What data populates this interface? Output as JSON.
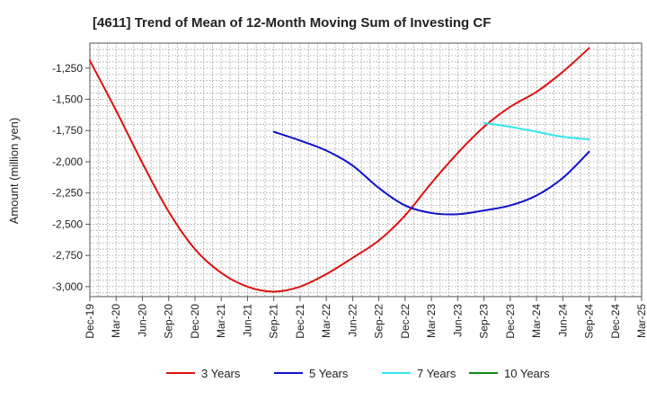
{
  "chart_data": {
    "type": "line",
    "title": "[4611]  Trend of Mean of 12-Month Moving Sum of Investing CF",
    "ylabel": "Amount (million yen)",
    "xlabel": "",
    "x_ticks": [
      "Dec-19",
      "Mar-20",
      "Jun-20",
      "Sep-20",
      "Dec-20",
      "Mar-21",
      "Jun-21",
      "Sep-21",
      "Dec-21",
      "Mar-22",
      "Jun-22",
      "Sep-22",
      "Dec-22",
      "Mar-23",
      "Jun-23",
      "Sep-23",
      "Dec-23",
      "Mar-24",
      "Jun-24",
      "Sep-24",
      "Dec-24",
      "Mar-25"
    ],
    "y_ticks": [
      -3000,
      -2750,
      -2500,
      -2250,
      -2000,
      -1750,
      -1500,
      -1250
    ],
    "y_tick_labels": [
      "-3,000",
      "-2,750",
      "-2,500",
      "-2,250",
      "-2,000",
      "-1,750",
      "-1,500",
      "-1,250"
    ],
    "ylim": [
      -3080,
      -1050
    ],
    "xlim": [
      "Dec-19",
      "Mar-25"
    ],
    "grid": true,
    "legend_position": "bottom",
    "series": [
      {
        "name": "3 Years",
        "color": "#dd1111",
        "points": [
          [
            "Dec-19",
            -1190
          ],
          [
            "Mar-20",
            -1590
          ],
          [
            "Jun-20",
            -2010
          ],
          [
            "Sep-20",
            -2400
          ],
          [
            "Dec-20",
            -2700
          ],
          [
            "Mar-21",
            -2890
          ],
          [
            "Jun-21",
            -3000
          ],
          [
            "Sep-21",
            -3040
          ],
          [
            "Dec-21",
            -3000
          ],
          [
            "Mar-22",
            -2900
          ],
          [
            "Jun-22",
            -2770
          ],
          [
            "Sep-22",
            -2630
          ],
          [
            "Dec-22",
            -2430
          ],
          [
            "Mar-23",
            -2170
          ],
          [
            "Jun-23",
            -1930
          ],
          [
            "Sep-23",
            -1720
          ],
          [
            "Dec-23",
            -1560
          ],
          [
            "Mar-24",
            -1440
          ],
          [
            "Jun-24",
            -1280
          ],
          [
            "Sep-24",
            -1090
          ]
        ]
      },
      {
        "name": "5 Years",
        "color": "#1111cc",
        "points": [
          [
            "Sep-21",
            -1760
          ],
          [
            "Dec-21",
            -1830
          ],
          [
            "Mar-22",
            -1910
          ],
          [
            "Jun-22",
            -2030
          ],
          [
            "Sep-22",
            -2210
          ],
          [
            "Dec-22",
            -2350
          ],
          [
            "Mar-23",
            -2410
          ],
          [
            "Jun-23",
            -2420
          ],
          [
            "Sep-23",
            -2390
          ],
          [
            "Dec-23",
            -2350
          ],
          [
            "Mar-24",
            -2270
          ],
          [
            "Jun-24",
            -2130
          ],
          [
            "Sep-24",
            -1920
          ]
        ]
      },
      {
        "name": "7 Years",
        "color": "#33e5ee",
        "points": [
          [
            "Sep-23",
            -1690
          ],
          [
            "Dec-23",
            -1720
          ],
          [
            "Mar-24",
            -1760
          ],
          [
            "Jun-24",
            -1800
          ],
          [
            "Sep-24",
            -1820
          ]
        ]
      },
      {
        "name": "10 Years",
        "color": "#118811",
        "points": []
      }
    ]
  }
}
